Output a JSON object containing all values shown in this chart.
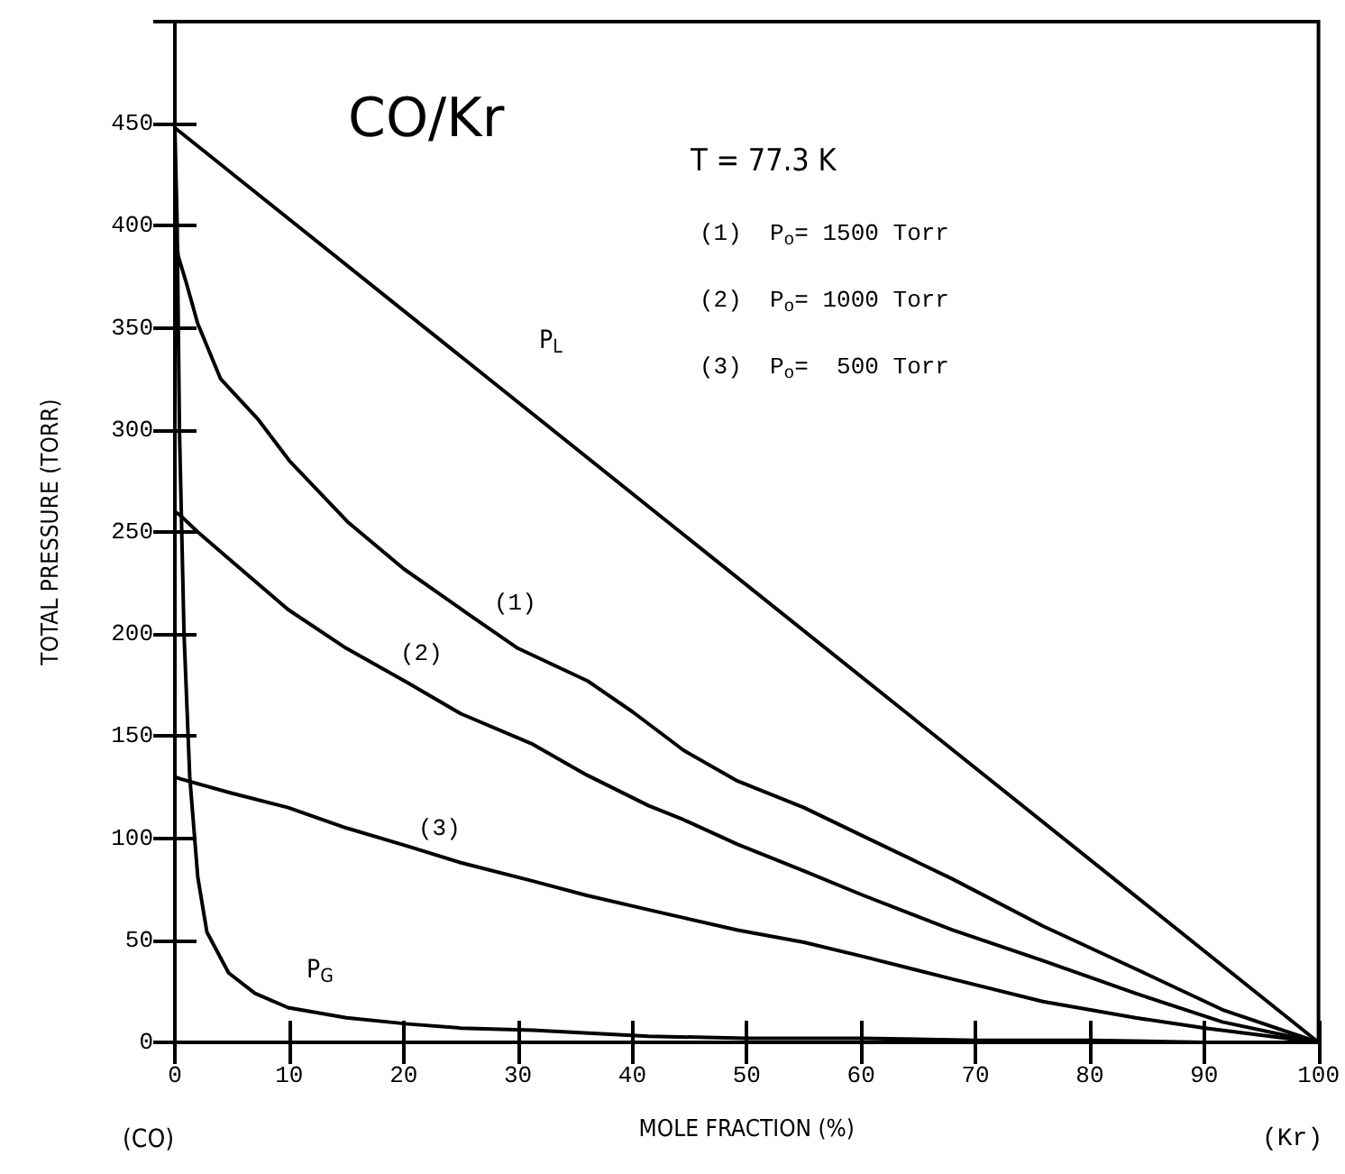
{
  "chart_data": {
    "type": "line",
    "title": "CO/Kr",
    "xlabel": "MOLE FRACTION (%)",
    "ylabel": "TOTAL PRESSURE (TORR)",
    "xlim": [
      0,
      100
    ],
    "xticks": [
      0,
      10,
      20,
      30,
      40,
      50,
      60,
      70,
      80,
      90,
      100
    ],
    "ylim": [
      0,
      500
    ],
    "yticks": [
      0,
      50,
      100,
      150,
      200,
      250,
      300,
      350,
      400,
      450,
      {
        "value": 500,
        "label": null
      }
    ],
    "grid": false,
    "marker": "none",
    "line_style": "solid",
    "series": [
      {
        "color": "#000000",
        "x": [
          0,
          100
        ],
        "values": [
          448,
          0
        ]
      },
      {
        "color": "#000000",
        "x": [
          0,
          0.3,
          1,
          2,
          4,
          7.3,
          10,
          15.1,
          20,
          25.6,
          30,
          36.1,
          40,
          44.5,
          49.2,
          55,
          60.2,
          68,
          75.9,
          84,
          91.6,
          100
        ],
        "values": [
          400,
          385,
          372,
          352,
          325,
          305,
          285,
          255,
          232,
          210,
          193,
          177,
          162,
          143,
          128,
          115,
          101,
          80,
          57,
          36,
          16,
          0
        ]
      },
      {
        "color": "#000000",
        "x": [
          0,
          0.5,
          2,
          4.7,
          9.9,
          15,
          20.4,
          25,
          31.3,
          36,
          41.4,
          44.5,
          49.2,
          55,
          60.2,
          68,
          75.9,
          84,
          91.6,
          100
        ],
        "values": [
          260,
          258,
          250,
          237,
          212,
          193,
          176,
          161,
          146,
          131,
          116,
          109,
          97,
          84,
          72,
          55,
          40,
          24,
          10,
          0
        ]
      },
      {
        "color": "#000000",
        "x": [
          0,
          0.5,
          5,
          9.9,
          15,
          20.4,
          25,
          31.3,
          36,
          41.4,
          44.5,
          49.2,
          55,
          60.2,
          68,
          75.9,
          84,
          90.1,
          100
        ],
        "values": [
          130,
          129,
          122,
          115,
          105,
          96,
          88,
          79,
          72,
          65,
          61,
          55,
          49,
          42,
          31,
          20,
          12,
          7,
          0
        ]
      },
      {
        "color": "#000000",
        "x": [
          0,
          0.2,
          0.4,
          0.8,
          1.3,
          2,
          2.8,
          4.7,
          7,
          9.9,
          15,
          20.4,
          25,
          31.3,
          41.4,
          50,
          60,
          70,
          80,
          90,
          100
        ],
        "values": [
          448,
          400,
          300,
          200,
          130,
          81,
          54,
          34,
          24,
          17,
          12,
          9,
          7,
          6,
          3,
          2,
          2,
          1,
          1,
          0,
          0
        ]
      }
    ],
    "annotations": [
      "T = 77.3 K",
      "(1)  P$_{o}$= 1500 Torr",
      "(2)  P$_{o}$= 1000 Torr",
      "(3)  P$_{o}$=  500 Torr",
      "(CO)",
      "(Kr)",
      "P$_{L}$",
      "(1)",
      "(2)",
      "(3)",
      "P$_{G}$"
    ]
  }
}
